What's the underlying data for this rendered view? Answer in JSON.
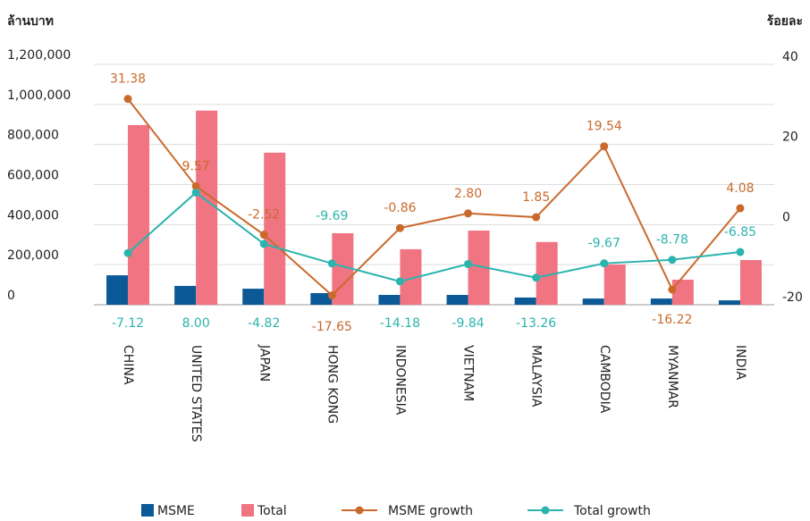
{
  "chart_data": {
    "type": "bar",
    "y_label": "ล้านบาท",
    "y2_label": "ร้อยละ",
    "categories": [
      "CHINA",
      "UNITED STATES",
      "JAPAN",
      "HONG KONG",
      "INDONESIA",
      "VIETNAM",
      "MALAYSIA",
      "CAMBODIA",
      "MYANMAR",
      "INDIA"
    ],
    "series": [
      {
        "name": "MSME",
        "type": "bar",
        "color": "#0b5a97",
        "values": [
          147000,
          94000,
          80000,
          58000,
          49000,
          49000,
          36000,
          31000,
          31000,
          22000
        ]
      },
      {
        "name": "Total",
        "type": "bar",
        "color": "#f07482",
        "values": [
          897000,
          969000,
          759000,
          357000,
          277000,
          370000,
          313000,
          201000,
          125000,
          223000
        ]
      },
      {
        "name": "MSME growth",
        "type": "line",
        "axis": "y2",
        "color": "#c96a2c",
        "values": [
          31.38,
          9.57,
          -2.52,
          -17.65,
          -0.86,
          2.8,
          1.85,
          19.54,
          -16.22,
          4.08
        ],
        "value_labels": [
          "31.38",
          "9.57",
          "-2.52",
          "-17.65",
          "-0.86",
          "2.80",
          "1.85",
          "19.54",
          "-16.22",
          "4.08"
        ]
      },
      {
        "name": "Total growth",
        "type": "line",
        "axis": "y2",
        "color": "#2bb3ae",
        "values": [
          -7.12,
          8,
          -4.82,
          -9.69,
          -14.18,
          -9.84,
          -13.26,
          -9.67,
          -8.78,
          -6.85
        ],
        "value_labels": [
          "-7.12",
          "8.00",
          "-4.82",
          "-9.69",
          "-14.18",
          "-9.84",
          "-13.26",
          "-9.67",
          "-8.78",
          "-6.85"
        ]
      }
    ],
    "ylim": [
      0,
      1200000
    ],
    "yticks": [
      0,
      {
        "value": 200000,
        "label": "200,000"
      },
      {
        "value": 400000,
        "label": "400,000"
      },
      {
        "value": 600000,
        "label": "600,000"
      },
      {
        "value": 800000,
        "label": "800,000"
      },
      {
        "value": 1000000,
        "label": "1,000,000"
      },
      {
        "value": 1200000,
        "label": "1,200,000"
      }
    ],
    "y2lim": [
      -20,
      40
    ],
    "y2ticks": [
      -20,
      0,
      20,
      40
    ],
    "grid": true
  }
}
